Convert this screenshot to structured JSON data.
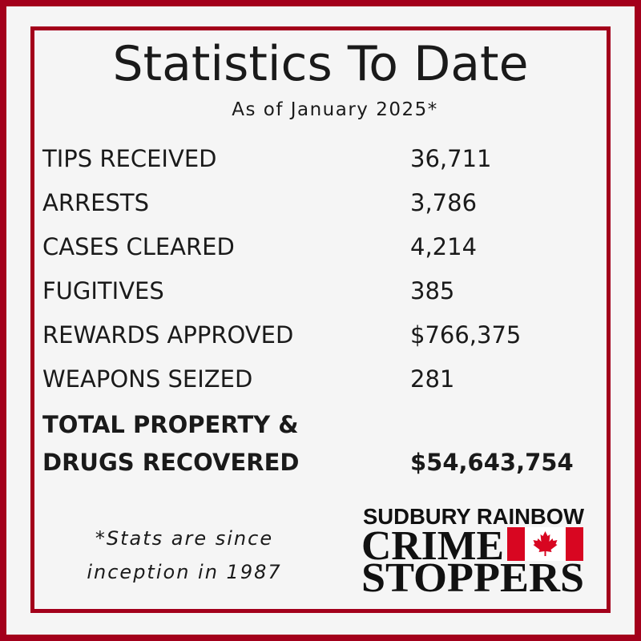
{
  "header": {
    "title": "Statistics To Date",
    "subtitle": "As of January 2025*"
  },
  "table": {
    "rows": [
      [
        "TIPS RECEIVED",
        "36,711"
      ],
      [
        "ARRESTS",
        "3,786"
      ],
      [
        "CASES CLEARED",
        "4,214"
      ],
      [
        "FUGITIVES",
        "385"
      ],
      [
        "REWARDS APPROVED",
        "$766,375"
      ],
      [
        "WEAPONS SEIZED",
        "281"
      ]
    ]
  },
  "total": {
    "label_lines": [
      "TOTAL PROPERTY &",
      "DRUGS RECOVERED"
    ],
    "value": "$54,643,754"
  },
  "footnote": {
    "lines": [
      "*Stats are since",
      "inception in 1987"
    ]
  },
  "logo": {
    "line1": "SUDBURY RAINBOW",
    "line2": "CRIME",
    "line3": "STOPPERS"
  }
}
